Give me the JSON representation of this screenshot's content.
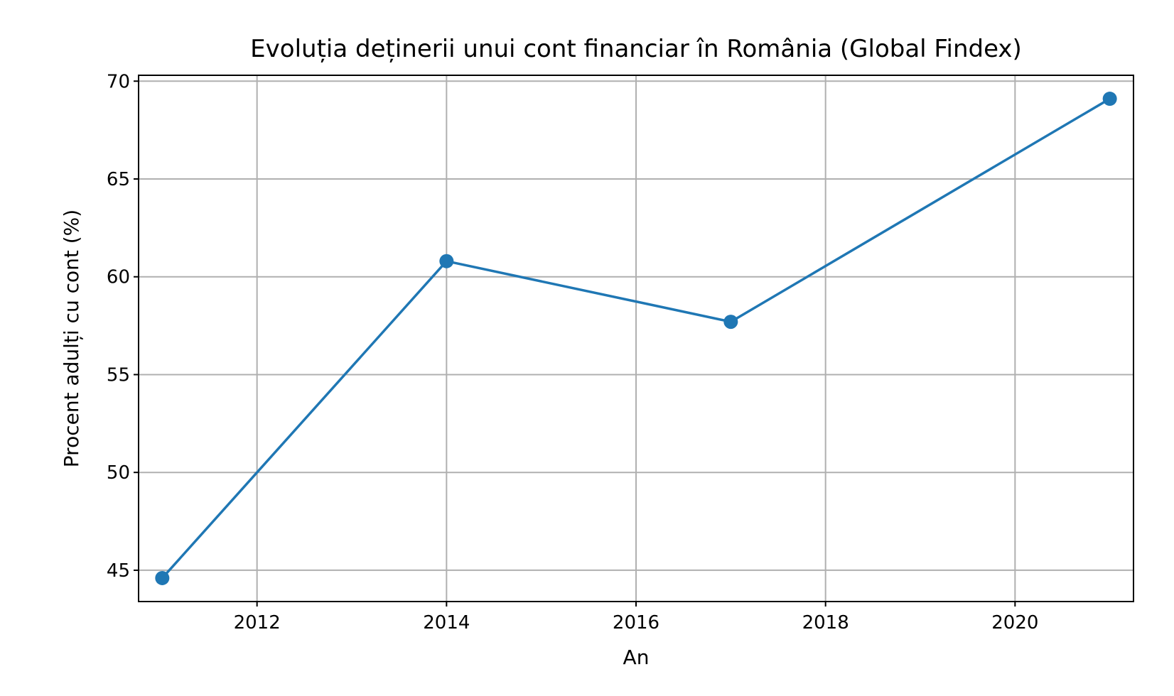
{
  "chart_data": {
    "type": "line",
    "title": "Evoluția deținerii unui cont financiar în România (Global Findex)",
    "xlabel": "An",
    "ylabel": "Procent adulți cu cont (%)",
    "xlim": [
      2010.75,
      2021.25
    ],
    "ylim": [
      43.4,
      70.3
    ],
    "xticks": [
      2012,
      2014,
      2016,
      2018,
      2020
    ],
    "yticks": [
      45,
      50,
      55,
      60,
      65,
      70
    ],
    "grid": true,
    "legend": "none",
    "series": [
      {
        "x": [
          2011,
          2014,
          2017,
          2021
        ],
        "y": [
          44.6,
          60.8,
          57.7,
          69.1
        ],
        "color": "#1f77b4",
        "marker": "circle"
      }
    ]
  }
}
